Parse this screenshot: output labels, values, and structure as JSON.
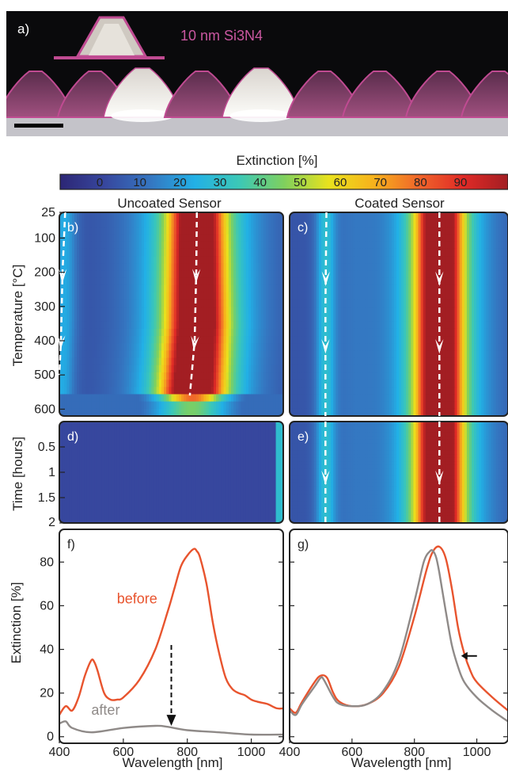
{
  "panel_a": {
    "label": "a)",
    "coating_label": "10 nm Si3N4"
  },
  "colorbar": {
    "title": "Extinction [%]",
    "ticks": [
      "0",
      "10",
      "20",
      "30",
      "40",
      "50",
      "60",
      "70",
      "80",
      "90"
    ],
    "colors": [
      "#2c2675",
      "#37479e",
      "#3575c0",
      "#22b0e6",
      "#3cc8b6",
      "#7fd05e",
      "#e9e21d",
      "#f7b21c",
      "#f0662a",
      "#e02a26",
      "#a31e23"
    ]
  },
  "titles": {
    "left": "Uncoated Sensor",
    "right": "Coated Sensor"
  },
  "axes": {
    "temperature_label": "Temperature [°C]",
    "temperature_ticks": [
      "25",
      "100",
      "200",
      "300",
      "400",
      "500",
      "600"
    ],
    "time_label": "Time [hours]",
    "time_ticks": [
      "0.5",
      "1",
      "1.5",
      "2"
    ],
    "extinction_label": "Extinction [%]",
    "extinction_ticks": [
      "0",
      "20",
      "40",
      "60",
      "80"
    ],
    "wavelength_label": "Wavelength [nm]",
    "wavelength_ticks_left": [
      "400",
      "600",
      "800",
      "1000"
    ],
    "wavelength_ticks_right": [
      "400",
      "600",
      "800",
      "1000"
    ]
  },
  "panel_labels": {
    "b": "b)",
    "c": "c)",
    "d": "d)",
    "e": "e)",
    "f": "f)",
    "g": "g)"
  },
  "chart_data": [
    {
      "type": "heatmap",
      "panel": "b",
      "title": "Uncoated Sensor",
      "xlabel": "Wavelength [nm]",
      "ylabel": "Temperature [°C]",
      "xlim": [
        400,
        1100
      ],
      "ylim": [
        25,
        620
      ],
      "peaks": [
        {
          "name": "short",
          "path": [
            [
              418,
              25
            ],
            [
              410,
              200
            ],
            [
              405,
              400
            ],
            [
              400,
              500
            ]
          ]
        },
        {
          "name": "long",
          "path": [
            [
              830,
              25
            ],
            [
              828,
              200
            ],
            [
              823,
              400
            ],
            [
              808,
              560
            ]
          ]
        }
      ]
    },
    {
      "type": "heatmap",
      "panel": "c",
      "title": "Coated Sensor",
      "xlabel": "Wavelength [nm]",
      "ylabel": "Temperature [°C]",
      "xlim": [
        400,
        1100
      ],
      "ylim": [
        25,
        620
      ],
      "peaks": [
        {
          "name": "short",
          "path": [
            [
              518,
              25
            ],
            [
              515,
              300
            ],
            [
              515,
              620
            ]
          ]
        },
        {
          "name": "long",
          "path": [
            [
              880,
              25
            ],
            [
              880,
              300
            ],
            [
              880,
              620
            ]
          ]
        }
      ]
    },
    {
      "type": "heatmap",
      "panel": "d",
      "xlabel": "Wavelength [nm]",
      "ylabel": "Time [hours]",
      "xlim": [
        400,
        1100
      ],
      "ylim": [
        0,
        2
      ]
    },
    {
      "type": "heatmap",
      "panel": "e",
      "xlabel": "Wavelength [nm]",
      "ylabel": "Time [hours]",
      "xlim": [
        400,
        1100
      ],
      "ylim": [
        0,
        2
      ],
      "peaks": [
        {
          "name": "short",
          "path": [
            [
              515,
              0
            ],
            [
              515,
              2
            ]
          ]
        },
        {
          "name": "long",
          "path": [
            [
              880,
              0
            ],
            [
              880,
              2
            ]
          ]
        }
      ]
    },
    {
      "type": "line",
      "panel": "f",
      "xlabel": "Wavelength [nm]",
      "ylabel": "Extinction [%]",
      "xlim": [
        400,
        1100
      ],
      "ylim": [
        -3,
        95
      ],
      "series": [
        {
          "name": "before",
          "color": "#e8542e",
          "x": [
            400,
            420,
            440,
            460,
            480,
            500,
            510,
            520,
            540,
            560,
            580,
            600,
            650,
            700,
            740,
            760,
            780,
            800,
            820,
            830,
            840,
            860,
            880,
            900,
            920,
            940,
            960,
            980,
            1000,
            1020,
            1050,
            1080,
            1100
          ],
          "y": [
            10,
            14,
            12,
            18,
            28,
            35,
            34,
            30,
            20,
            17,
            17,
            18,
            26,
            40,
            58,
            68,
            78,
            83,
            86,
            85,
            82,
            70,
            52,
            38,
            27,
            22,
            20,
            19,
            17,
            16,
            15,
            13,
            13
          ]
        },
        {
          "name": "after",
          "color": "#8f8a88",
          "x": [
            400,
            420,
            440,
            500,
            600,
            700,
            740,
            800,
            900,
            1000,
            1100
          ],
          "y": [
            6,
            7,
            4,
            2,
            4,
            5,
            4.5,
            3,
            2,
            1,
            1
          ]
        }
      ]
    },
    {
      "type": "line",
      "panel": "g",
      "xlabel": "Wavelength [nm]",
      "ylabel": "Extinction [%]",
      "xlim": [
        400,
        1100
      ],
      "ylim": [
        -3,
        95
      ],
      "series": [
        {
          "color": "#e8542e",
          "x": [
            400,
            420,
            440,
            480,
            500,
            520,
            540,
            560,
            600,
            650,
            700,
            750,
            800,
            840,
            860,
            880,
            900,
            920,
            940,
            960,
            980,
            1000,
            1050,
            1100
          ],
          "y": [
            13,
            11,
            16,
            25,
            28,
            27,
            20,
            16,
            14,
            15,
            20,
            32,
            55,
            77,
            85,
            87,
            82,
            68,
            50,
            38,
            30,
            25,
            18,
            12
          ]
        },
        {
          "color": "#8f8a88",
          "x": [
            400,
            420,
            440,
            480,
            500,
            510,
            540,
            560,
            600,
            650,
            700,
            750,
            800,
            830,
            850,
            860,
            870,
            880,
            900,
            920,
            940,
            960,
            1000,
            1050,
            1100
          ],
          "y": [
            12,
            10,
            15,
            23,
            27,
            26,
            18,
            15,
            14,
            15,
            21,
            35,
            62,
            80,
            85,
            85,
            82,
            75,
            58,
            42,
            32,
            25,
            18,
            12,
            7
          ]
        }
      ]
    }
  ]
}
